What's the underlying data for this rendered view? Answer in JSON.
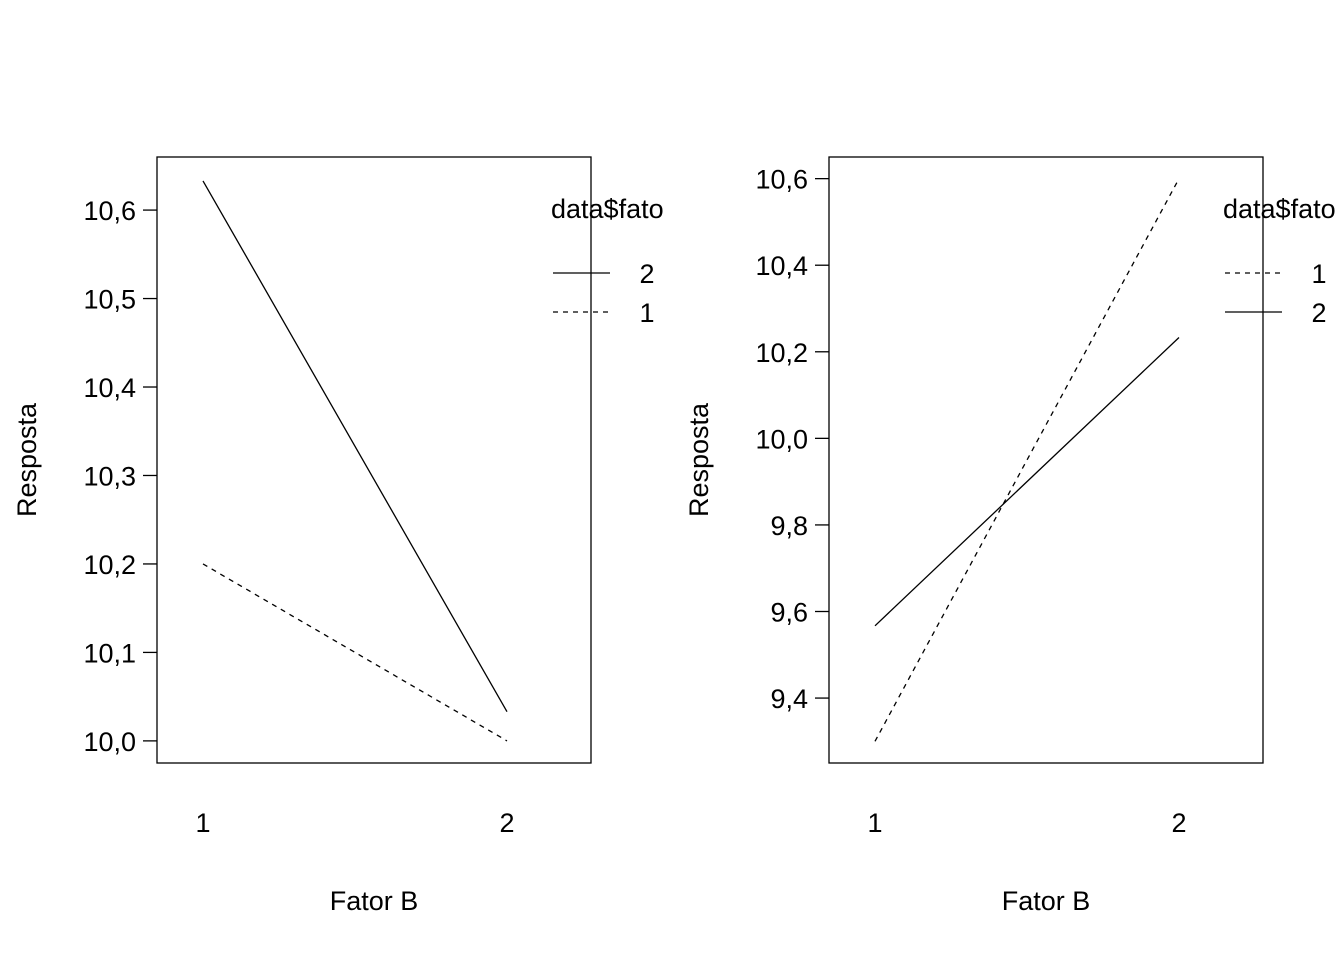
{
  "chart_data": [
    {
      "type": "line",
      "xlabel": "Fator B",
      "ylabel": "Resposta",
      "categories": [
        "1",
        "2"
      ],
      "yticks": [
        "10,0",
        "10,1",
        "10,2",
        "10,3",
        "10,4",
        "10,5",
        "10,6"
      ],
      "ylim": [
        9.975,
        10.66
      ],
      "legend_title": "data$fato",
      "legend_order": [
        "2",
        "1"
      ],
      "legend_placement": "top-right",
      "series": [
        {
          "name": "2",
          "values": [
            10.633,
            10.033
          ],
          "linestyle": "solid"
        },
        {
          "name": "1",
          "values": [
            10.2,
            10.0
          ],
          "linestyle": "dashed"
        }
      ]
    },
    {
      "type": "line",
      "xlabel": "Fator B",
      "ylabel": "Resposta",
      "categories": [
        "1",
        "2"
      ],
      "yticks": [
        "9,4",
        "9,6",
        "9,8",
        "10,0",
        "10,2",
        "10,4",
        "10,6"
      ],
      "ylim": [
        9.25,
        10.65
      ],
      "legend_title": "data$fato",
      "legend_order": [
        "1",
        "2"
      ],
      "legend_placement": "top-right",
      "series": [
        {
          "name": "1",
          "values": [
            9.3,
            10.6
          ],
          "linestyle": "dashed"
        },
        {
          "name": "2",
          "values": [
            9.567,
            10.233
          ],
          "linestyle": "solid"
        }
      ]
    }
  ]
}
